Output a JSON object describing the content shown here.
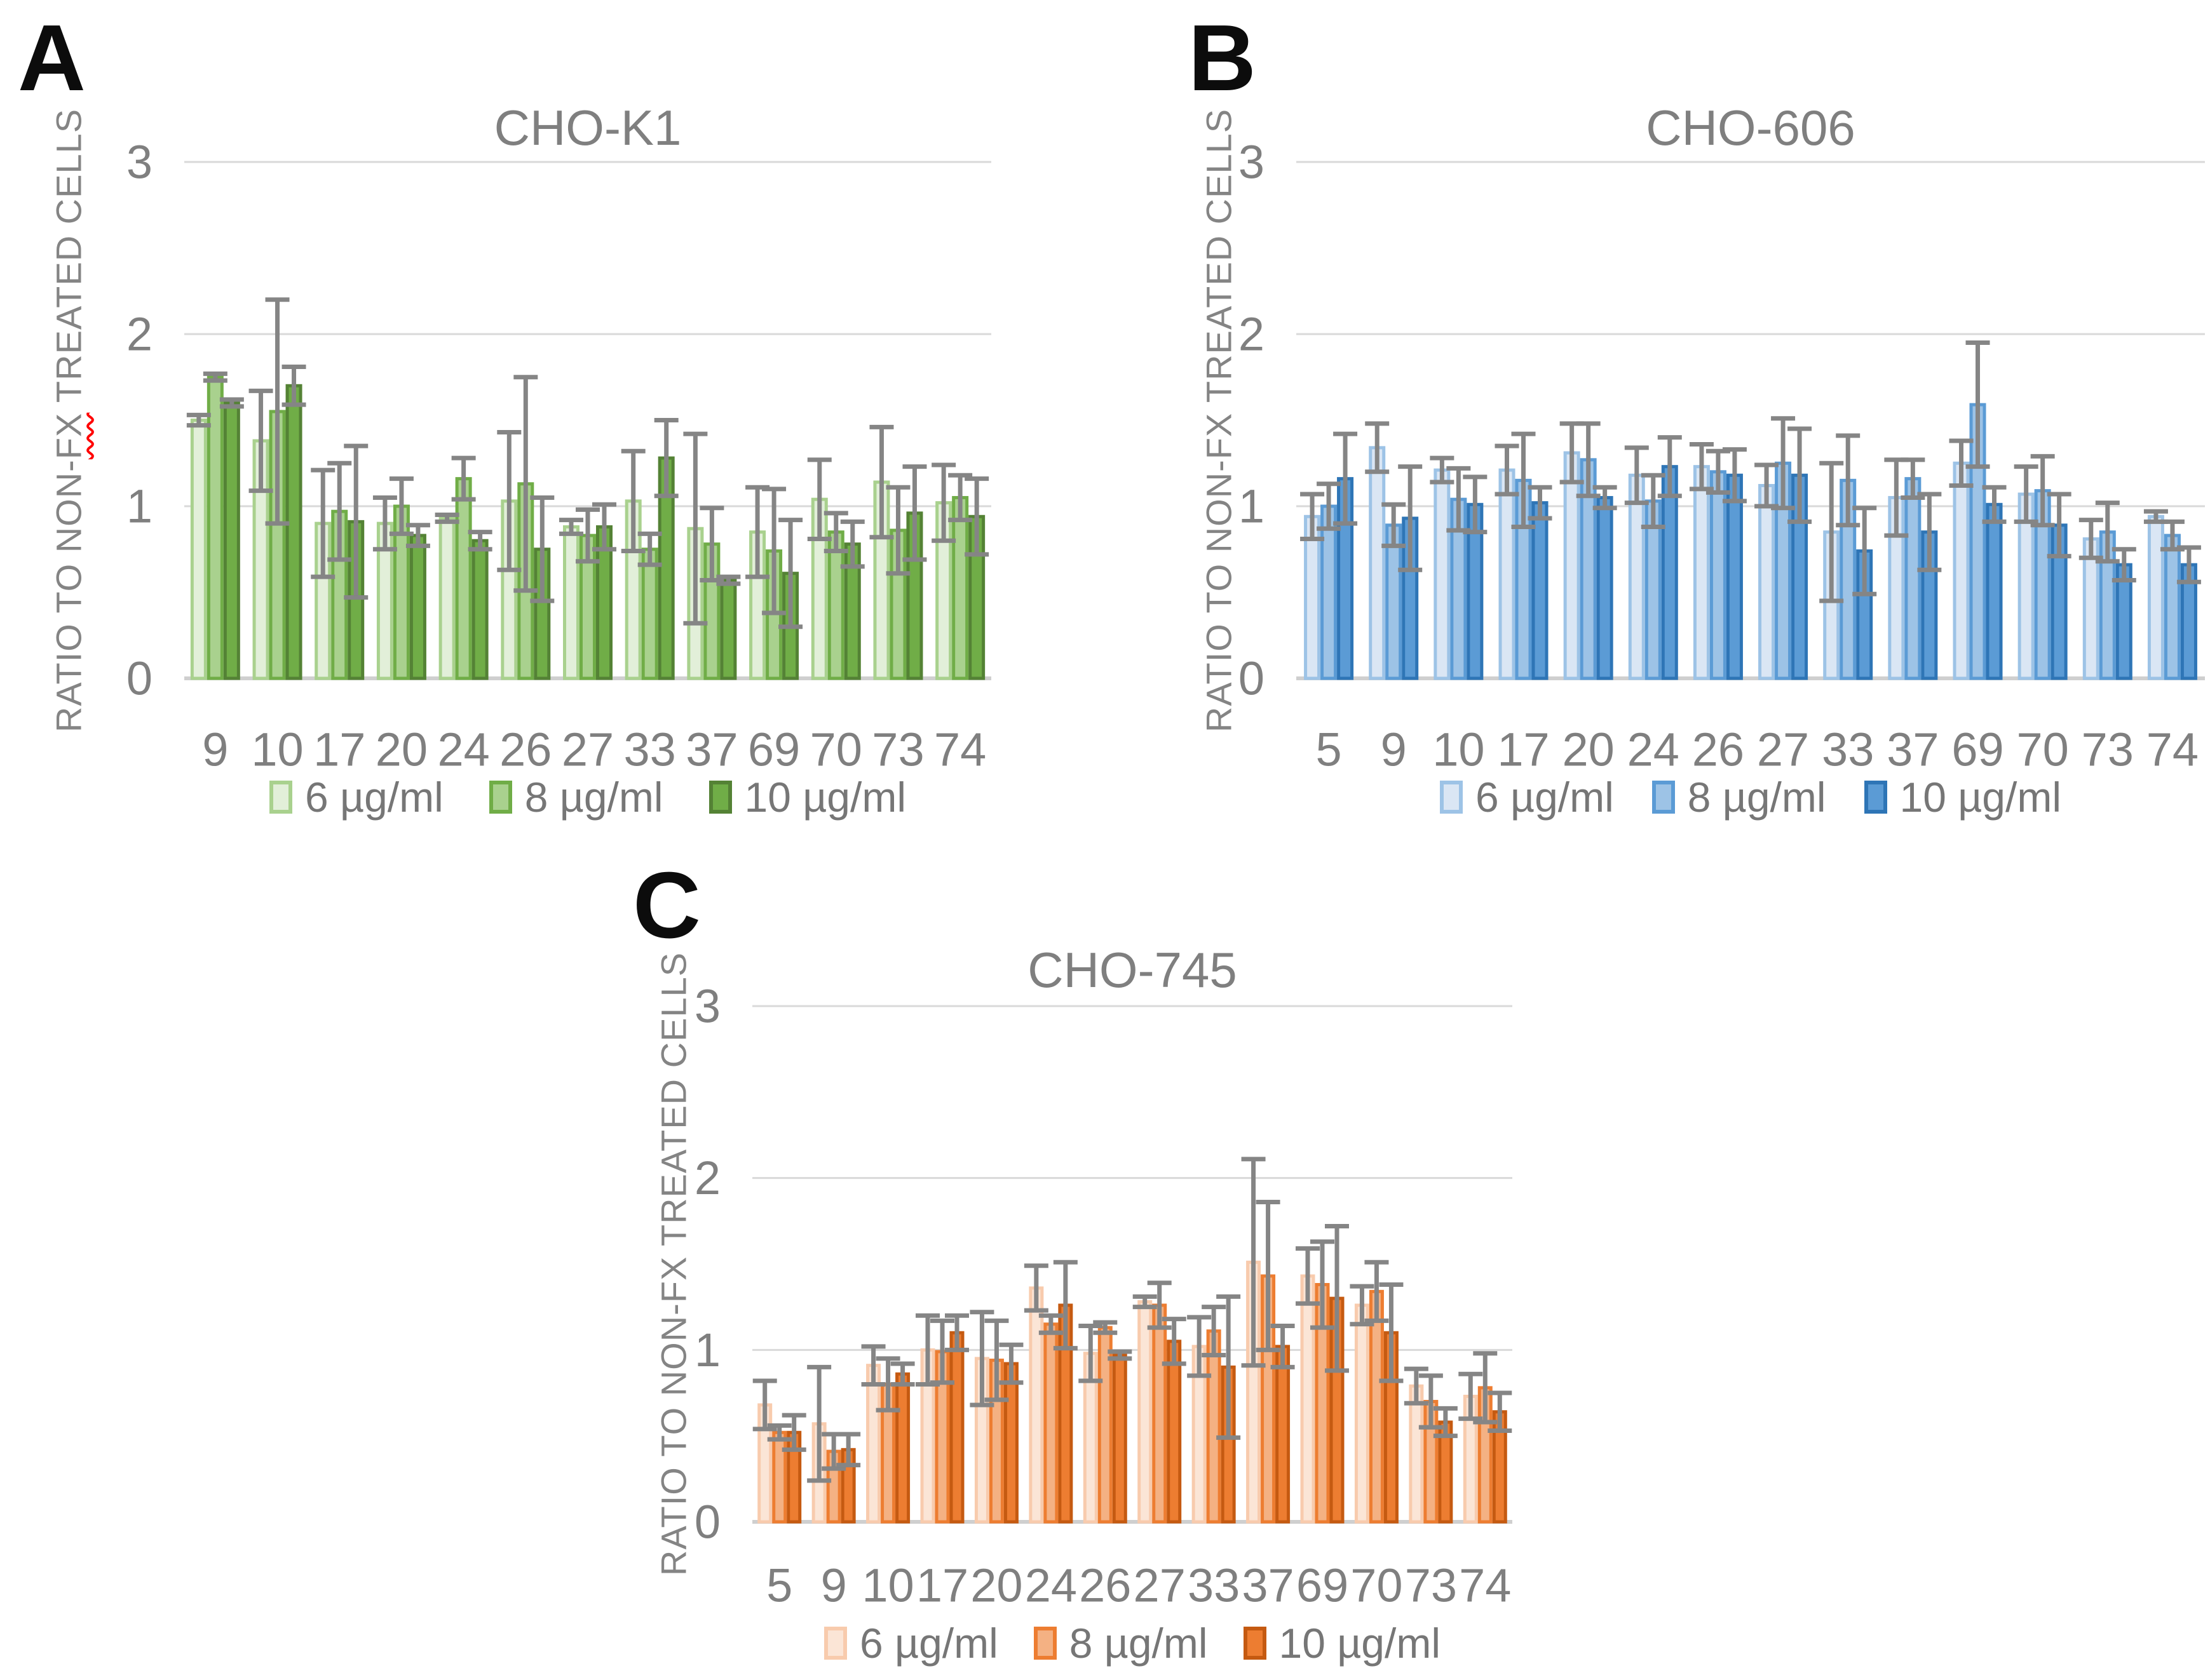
{
  "figure_type": "three-panel grouped bar chart figure",
  "colors": {
    "error_bar": "#858585",
    "gridline": "#d9d9d9",
    "axis_baseline": "#cfcfcf",
    "axis_text": "#7f7f7f",
    "title_text": "#7f7f7f",
    "panel_letter": "#0c0c0c",
    "spellcheck_red": "#ff0000"
  },
  "chart_data": [
    {
      "type": "bar",
      "panel_label": "A",
      "title": "CHO-K1",
      "ylabel": "RATIO TO NON-FX TREATED CELLS",
      "ylabel_parts": {
        "pre": "RATIO TO NON-",
        "fx": "FX",
        "post": " TREATED CELLS"
      },
      "xlabel": "",
      "categories": [
        "9",
        "10",
        "17",
        "20",
        "24",
        "26",
        "27",
        "33",
        "37",
        "69",
        "70",
        "73",
        "74"
      ],
      "yticks": [
        0,
        1,
        2,
        3
      ],
      "ylim": [
        0,
        3
      ],
      "grid": true,
      "legend_position": "bottom",
      "series": [
        {
          "name": "6 µg/ml",
          "fill": "#e2efd9",
          "border": "#a9d18e",
          "values": [
            1.5,
            1.38,
            0.9,
            0.9,
            0.93,
            1.03,
            0.88,
            1.03,
            0.87,
            0.85,
            1.04,
            1.14,
            1.02
          ],
          "errors": [
            0.03,
            0.29,
            0.31,
            0.15,
            0.02,
            0.4,
            0.04,
            0.29,
            0.55,
            0.26,
            0.23,
            0.32,
            0.22
          ]
        },
        {
          "name": "8 µg/ml",
          "fill": "#a9d18e",
          "border": "#70ad47",
          "values": [
            1.75,
            1.55,
            0.97,
            1.0,
            1.16,
            1.13,
            0.83,
            0.75,
            0.78,
            0.74,
            0.85,
            0.86,
            1.05
          ],
          "errors": [
            0.02,
            0.65,
            0.28,
            0.16,
            0.12,
            0.62,
            0.15,
            0.09,
            0.21,
            0.36,
            0.11,
            0.25,
            0.13
          ]
        },
        {
          "name": "10 µg/ml",
          "fill": "#70ad47",
          "border": "#548235",
          "values": [
            1.6,
            1.7,
            0.91,
            0.83,
            0.8,
            0.75,
            0.88,
            1.28,
            0.57,
            0.61,
            0.78,
            0.96,
            0.94
          ],
          "errors": [
            0.02,
            0.11,
            0.44,
            0.06,
            0.05,
            0.3,
            0.13,
            0.22,
            0.02,
            0.31,
            0.13,
            0.27,
            0.22
          ]
        }
      ]
    },
    {
      "type": "bar",
      "panel_label": "B",
      "title": "CHO-606",
      "ylabel": "RATIO TO NON-FX TREATED CELLS",
      "xlabel": "",
      "categories": [
        "5",
        "9",
        "10",
        "17",
        "20",
        "24",
        "26",
        "27",
        "33",
        "37",
        "69",
        "70",
        "73",
        "74"
      ],
      "yticks": [
        0,
        1,
        2,
        3
      ],
      "ylim": [
        0,
        3
      ],
      "grid": true,
      "legend_position": "bottom",
      "series": [
        {
          "name": "6 µg/ml",
          "fill": "#dae6f4",
          "border": "#9dc3e6",
          "values": [
            0.94,
            1.34,
            1.21,
            1.21,
            1.31,
            1.18,
            1.23,
            1.12,
            0.85,
            1.05,
            1.25,
            1.07,
            0.81,
            0.94
          ],
          "errors": [
            0.13,
            0.14,
            0.07,
            0.14,
            0.17,
            0.16,
            0.13,
            0.12,
            0.4,
            0.22,
            0.13,
            0.16,
            0.11,
            0.03
          ]
        },
        {
          "name": "8 µg/ml",
          "fill": "#9dc3e6",
          "border": "#5b9bd5",
          "values": [
            1.0,
            0.89,
            1.04,
            1.15,
            1.27,
            1.03,
            1.2,
            1.25,
            1.15,
            1.16,
            1.59,
            1.09,
            0.85,
            0.83
          ],
          "errors": [
            0.13,
            0.12,
            0.18,
            0.27,
            0.21,
            0.15,
            0.12,
            0.26,
            0.26,
            0.11,
            0.36,
            0.2,
            0.17,
            0.08
          ]
        },
        {
          "name": "10 µg/ml",
          "fill": "#5b9bd5",
          "border": "#2e75b6",
          "values": [
            1.16,
            0.93,
            1.01,
            1.02,
            1.05,
            1.23,
            1.18,
            1.18,
            0.74,
            0.85,
            1.01,
            0.89,
            0.66,
            0.66
          ],
          "errors": [
            0.26,
            0.3,
            0.16,
            0.09,
            0.06,
            0.17,
            0.15,
            0.27,
            0.25,
            0.22,
            0.1,
            0.18,
            0.09,
            0.1
          ]
        }
      ]
    },
    {
      "type": "bar",
      "panel_label": "C",
      "title": "CHO-745",
      "ylabel": "RATIO TO NON-FX TREATED CELLS",
      "xlabel": "",
      "categories": [
        "5",
        "9",
        "10",
        "17",
        "20",
        "24",
        "26",
        "27",
        "33",
        "37",
        "69",
        "70",
        "73",
        "74"
      ],
      "yticks": [
        0,
        1,
        2,
        3
      ],
      "ylim": [
        0,
        3
      ],
      "grid": true,
      "legend_position": "bottom",
      "series": [
        {
          "name": "6 µg/ml",
          "fill": "#fbe5d6",
          "border": "#f8cbad",
          "values": [
            0.68,
            0.57,
            0.91,
            1.0,
            0.95,
            1.36,
            0.98,
            1.28,
            1.02,
            1.51,
            1.43,
            1.26,
            0.79,
            0.73
          ],
          "errors": [
            0.14,
            0.33,
            0.11,
            0.2,
            0.27,
            0.13,
            0.16,
            0.03,
            0.17,
            0.6,
            0.16,
            0.11,
            0.1,
            0.13
          ]
        },
        {
          "name": "8 µg/ml",
          "fill": "#f4b183",
          "border": "#ed7d31",
          "values": [
            0.52,
            0.41,
            0.8,
            0.99,
            0.94,
            1.15,
            1.13,
            1.26,
            1.11,
            1.43,
            1.38,
            1.34,
            0.7,
            0.78
          ],
          "errors": [
            0.04,
            0.1,
            0.15,
            0.18,
            0.23,
            0.05,
            0.03,
            0.13,
            0.14,
            0.43,
            0.25,
            0.17,
            0.15,
            0.2
          ]
        },
        {
          "name": "10 µg/ml",
          "fill": "#ed7d31",
          "border": "#c55a11",
          "values": [
            0.52,
            0.42,
            0.86,
            1.1,
            0.92,
            1.26,
            0.97,
            1.05,
            0.9,
            1.02,
            1.3,
            1.1,
            0.58,
            0.64
          ],
          "errors": [
            0.1,
            0.09,
            0.06,
            0.1,
            0.11,
            0.25,
            0.02,
            0.13,
            0.41,
            0.12,
            0.42,
            0.28,
            0.08,
            0.11
          ]
        }
      ]
    }
  ]
}
